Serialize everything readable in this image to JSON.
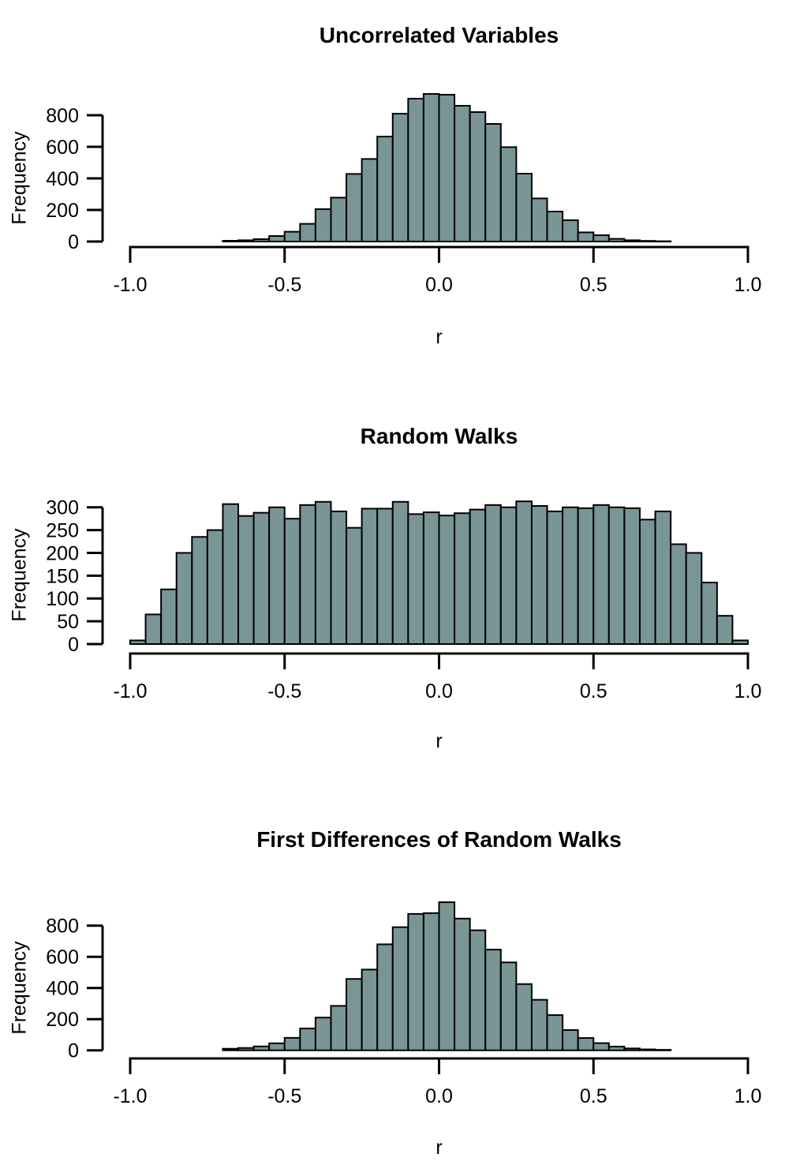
{
  "page": {
    "background": "#ffffff",
    "text_color": "#000000"
  },
  "chart_data": [
    {
      "type": "bar",
      "subtype": "histogram",
      "title": "Uncorrelated Variables",
      "xlabel": "r",
      "ylabel": "Frequency",
      "xlim": [
        -1.0,
        1.0
      ],
      "ylim": [
        0,
        800
      ],
      "grid": false,
      "legend": "none",
      "bar_fill": "#7A9596",
      "bar_stroke": "#000000",
      "bin_start": -0.7,
      "bin_width": 0.05,
      "x_ticks": [
        {
          "label": "-1.0",
          "value": -1.0
        },
        {
          "label": "-0.5",
          "value": -0.5
        },
        {
          "label": "0.0",
          "value": 0.0
        },
        {
          "label": "0.5",
          "value": 0.5
        },
        {
          "label": "1.0",
          "value": 1.0
        }
      ],
      "y_ticks": [
        0,
        200,
        400,
        600,
        800
      ],
      "values": [
        5,
        8,
        15,
        35,
        62,
        112,
        205,
        278,
        428,
        523,
        665,
        810,
        905,
        935,
        930,
        860,
        820,
        745,
        598,
        430,
        273,
        190,
        135,
        58,
        40,
        17,
        8,
        4,
        2
      ]
    },
    {
      "type": "bar",
      "subtype": "histogram",
      "title": "Random Walks",
      "xlabel": "r",
      "ylabel": "Frequency",
      "xlim": [
        -1.0,
        1.0
      ],
      "ylim": [
        0,
        300
      ],
      "grid": false,
      "legend": "none",
      "bar_fill": "#7A9596",
      "bar_stroke": "#000000",
      "bin_start": -1.0,
      "bin_width": 0.05,
      "x_ticks": [
        {
          "label": "-1.0",
          "value": -1.0
        },
        {
          "label": "-0.5",
          "value": -0.5
        },
        {
          "label": "0.0",
          "value": 0.0
        },
        {
          "label": "0.5",
          "value": 0.5
        },
        {
          "label": "1.0",
          "value": 1.0
        }
      ],
      "y_ticks": [
        0,
        50,
        100,
        150,
        200,
        250,
        300
      ],
      "values": [
        8,
        65,
        120,
        200,
        235,
        250,
        307,
        281,
        288,
        300,
        275,
        305,
        312,
        291,
        255,
        297,
        297,
        312,
        285,
        289,
        282,
        287,
        295,
        305,
        300,
        313,
        303,
        291,
        300,
        298,
        305,
        300,
        298,
        273,
        291,
        219,
        200,
        135,
        62,
        8
      ]
    },
    {
      "type": "bar",
      "subtype": "histogram",
      "title": "First Differences of Random Walks",
      "xlabel": "r",
      "ylabel": "Frequency",
      "xlim": [
        -1.0,
        1.0
      ],
      "ylim": [
        0,
        800
      ],
      "grid": false,
      "legend": "none",
      "bar_fill": "#7A9596",
      "bar_stroke": "#000000",
      "bin_start": -0.7,
      "bin_width": 0.05,
      "x_ticks": [
        {
          "label": "-1.0",
          "value": -1.0
        },
        {
          "label": "-0.5",
          "value": -0.5
        },
        {
          "label": "0.0",
          "value": 0.0
        },
        {
          "label": "0.5",
          "value": 0.5
        },
        {
          "label": "1.0",
          "value": 1.0
        }
      ],
      "y_ticks": [
        0,
        200,
        400,
        600,
        800
      ],
      "values": [
        10,
        15,
        25,
        45,
        80,
        140,
        210,
        285,
        458,
        518,
        680,
        790,
        875,
        880,
        950,
        845,
        770,
        646,
        564,
        425,
        324,
        226,
        130,
        79,
        46,
        24,
        12,
        6,
        3
      ]
    }
  ]
}
